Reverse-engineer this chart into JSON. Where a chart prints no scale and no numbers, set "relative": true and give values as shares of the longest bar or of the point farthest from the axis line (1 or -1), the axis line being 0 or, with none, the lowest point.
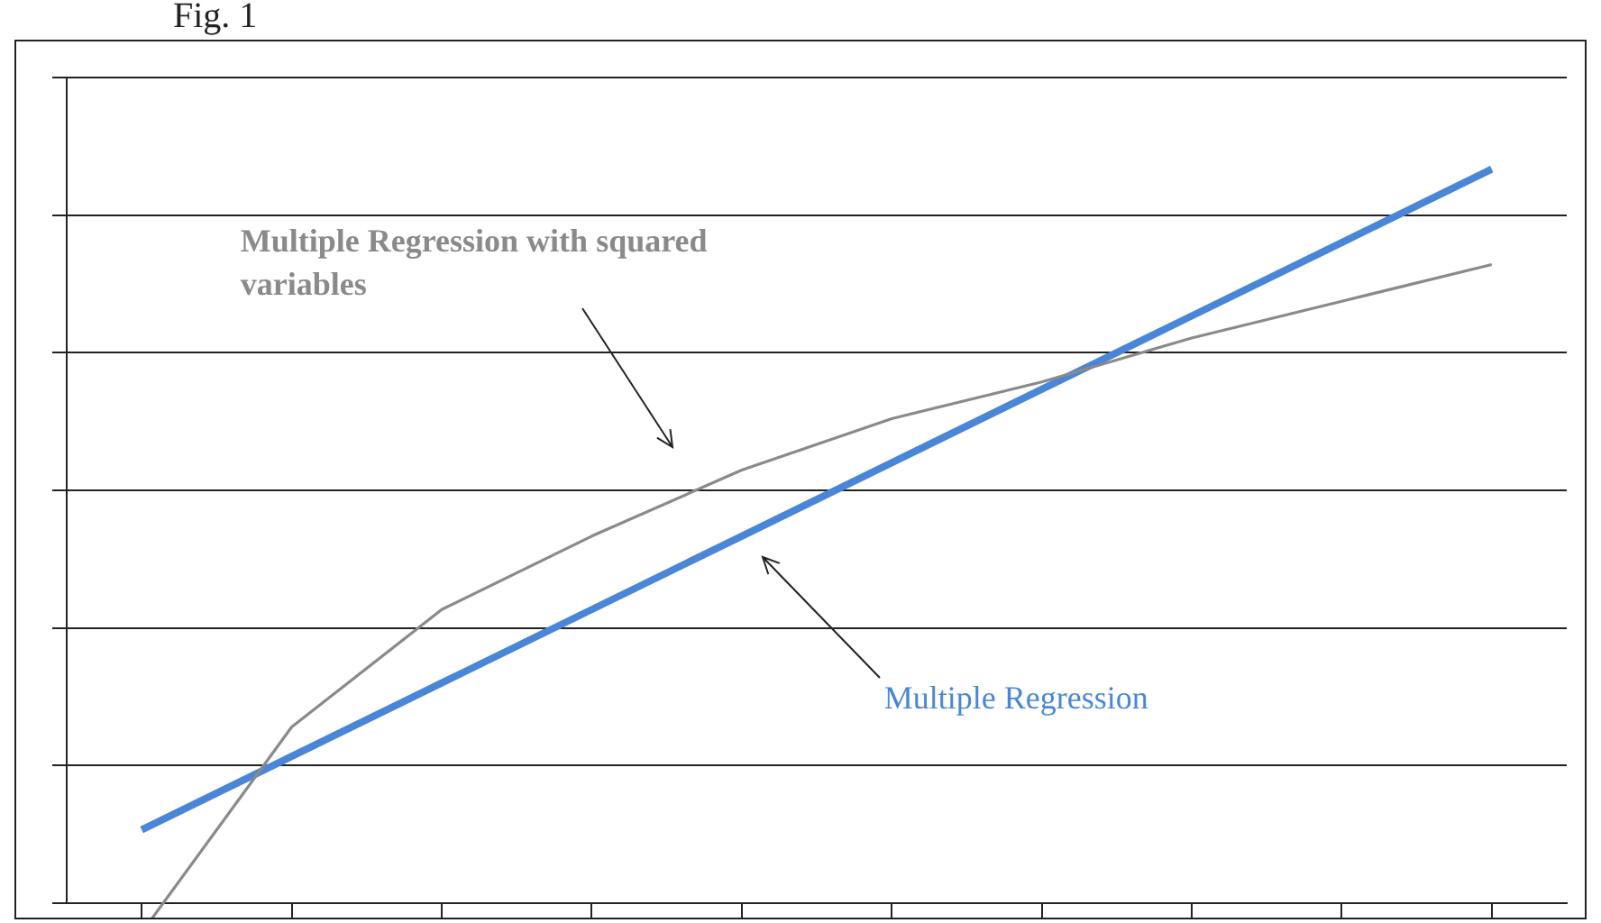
{
  "chart_data": {
    "type": "line",
    "title": "Fig. 1",
    "relative": true,
    "grid": "y",
    "legend": false,
    "marker": "none",
    "line_style": "solid",
    "categories": [
      null,
      null,
      null,
      null,
      null,
      null,
      null,
      null,
      null,
      null
    ],
    "series": [
      {
        "name": "Multiple Regression with squared variables",
        "color": "#8a8a8a",
        "values": [
          -0.04,
          0.24,
          0.4,
          0.5,
          0.59,
          0.66,
          0.71,
          0.77,
          0.82,
          0.87
        ]
      },
      {
        "name": "Multiple Regression",
        "color": "#4a86d8",
        "values": [
          0.1,
          0.2,
          0.3,
          0.4,
          0.5,
          0.6,
          0.7,
          0.8,
          0.9,
          1
        ]
      }
    ]
  }
}
